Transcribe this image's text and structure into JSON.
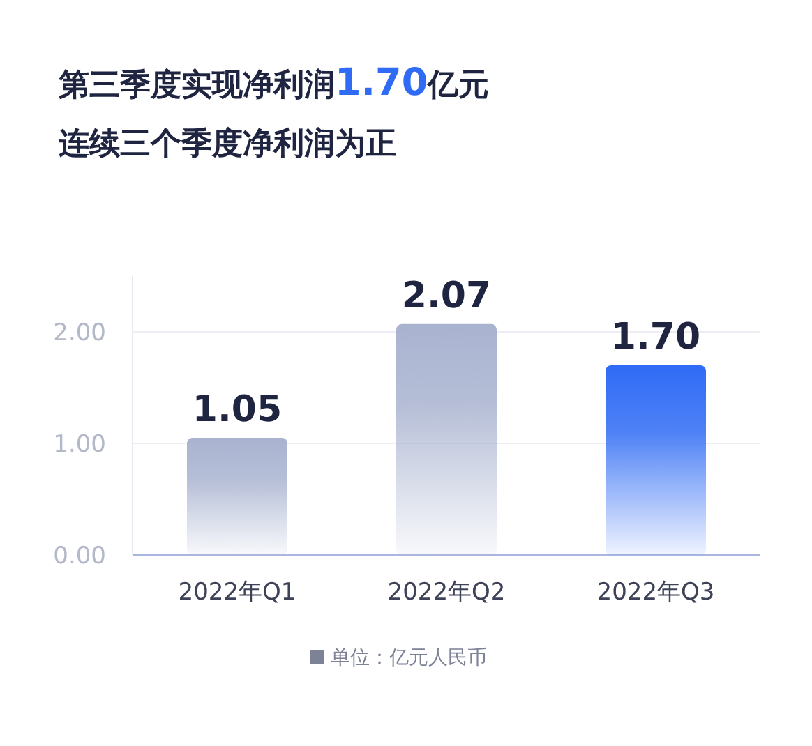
{
  "chart_data": {
    "type": "bar",
    "title": "第三季度实现净利润**1.70**亿元",
    "subtitle": "连续三个季度净利润为正",
    "categories": [
      "2022年Q1",
      "2022年Q2",
      "2022年Q3"
    ],
    "values": [
      1.05,
      2.07,
      1.7
    ],
    "colors": [
      "#a9b3d0",
      "#a9b3d0",
      "#2f6bf5"
    ],
    "value_labels": [
      "1.05",
      "2.07",
      "1.70"
    ],
    "ylim": [
      0,
      2.5
    ],
    "yticks": [
      {
        "value": 0,
        "label": "0.00"
      },
      {
        "value": 1,
        "label": "1.00"
      },
      {
        "value": 2,
        "label": "2.00"
      }
    ],
    "grid": "y",
    "annotations": [
      "单位：亿元人民币"
    ]
  }
}
